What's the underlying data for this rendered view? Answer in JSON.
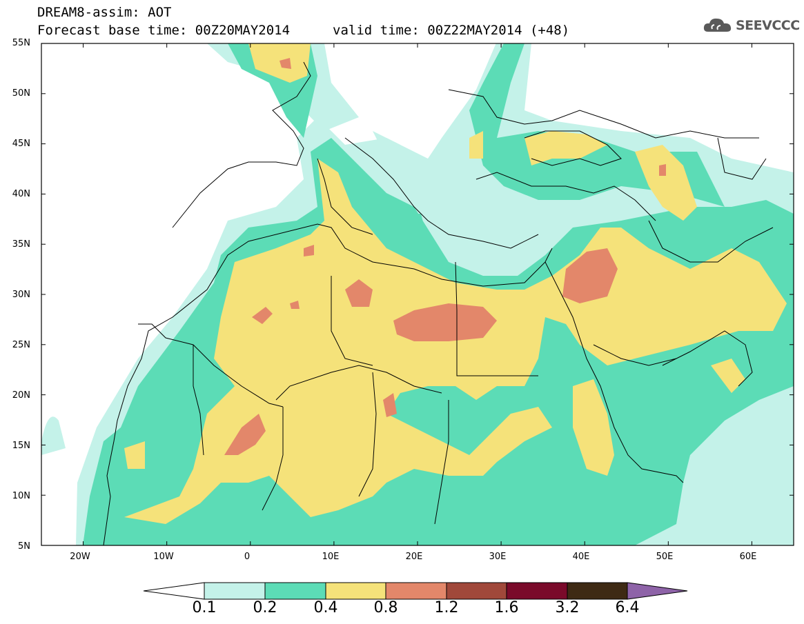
{
  "header": {
    "title": "DREAM8-assim: AOT",
    "base_time": "Forecast base time: 00Z20MAY2014",
    "valid_time": "valid time: 00Z22MAY2014 (+48)"
  },
  "logo": {
    "text": "SEEVCCC",
    "icon": "cloud-icon"
  },
  "map": {
    "projection": "lat-lon",
    "lon_range": [
      -25,
      65
    ],
    "lat_range": [
      5,
      55
    ],
    "lat_labels": [
      "55N",
      "50N",
      "45N",
      "40N",
      "35N",
      "30N",
      "25N",
      "20N",
      "15N",
      "10N",
      "5N"
    ],
    "lon_labels": [
      "20W",
      "10W",
      "0",
      "10E",
      "20E",
      "30E",
      "40E",
      "50E",
      "60E"
    ]
  },
  "colorbar": {
    "labels": [
      "0.1",
      "0.2",
      "0.4",
      "0.8",
      "1.2",
      "1.6",
      "3.2",
      "6.4"
    ],
    "colors": [
      "#ffffff",
      "#c4f2e9",
      "#5cdcb6",
      "#f5e27a",
      "#e3876a",
      "#a0483a",
      "#7a0a2a",
      "#3e2a14",
      "#8e63a8"
    ]
  },
  "levels": {
    "l1": "#c4f2e9",
    "l2": "#5cdcb6",
    "l3": "#f5e27a",
    "l4": "#e3876a"
  }
}
